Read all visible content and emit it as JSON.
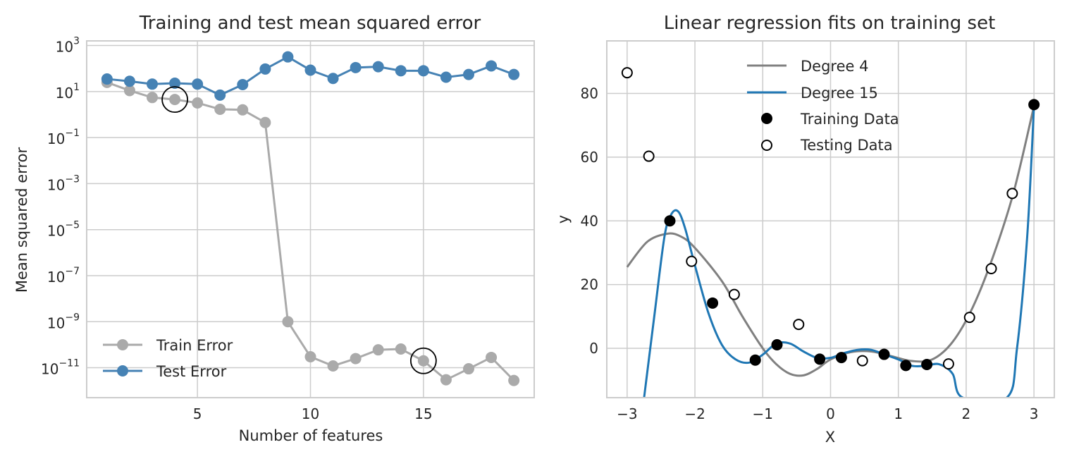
{
  "chart_data": [
    {
      "type": "line",
      "title": "Training and test mean squared error",
      "xlabel": "Number of features",
      "ylabel": "Mean squared error",
      "yscale": "log",
      "xlim": [
        0.1,
        19.9
      ],
      "ylim_log10": [
        -12.3,
        3.2
      ],
      "xticks": [
        "5",
        "10",
        "15"
      ],
      "xtick_values": [
        5,
        10,
        15
      ],
      "yticks": [
        {
          "base": "10",
          "exp": "3",
          "log10": 3
        },
        {
          "base": "10",
          "exp": "1",
          "log10": 1
        },
        {
          "base": "10",
          "exp": "−1",
          "log10": -1
        },
        {
          "base": "10",
          "exp": "−3",
          "log10": -3
        },
        {
          "base": "10",
          "exp": "−5",
          "log10": -5
        },
        {
          "base": "10",
          "exp": "−7",
          "log10": -7
        },
        {
          "base": "10",
          "exp": "−9",
          "log10": -9
        },
        {
          "base": "10",
          "exp": "−11",
          "log10": -11
        }
      ],
      "grid": true,
      "legend_position": "lower-left",
      "x": [
        1,
        2,
        3,
        4,
        5,
        6,
        7,
        8,
        9,
        10,
        11,
        12,
        13,
        14,
        15,
        16,
        17,
        18,
        19
      ],
      "series": [
        {
          "name": "Train Error",
          "color": "#aaaaaa",
          "values": [
            25,
            11,
            5.5,
            4.5,
            3.2,
            1.7,
            1.6,
            0.45,
            1e-09,
            3e-11,
            1.2e-11,
            2.5e-11,
            6e-11,
            6.5e-11,
            2e-11,
            3e-12,
            9e-12,
            2.8e-11,
            2.8e-12
          ]
        },
        {
          "name": "Test Error",
          "color": "#4682b4",
          "values": [
            35,
            28,
            21,
            23,
            21,
            7,
            20,
            95,
            320,
            85,
            37,
            110,
            120,
            80,
            80,
            42,
            55,
            130,
            55
          ]
        }
      ],
      "highlighted_points": [
        {
          "x": 4,
          "y": 4.5
        },
        {
          "x": 15,
          "y": 2e-11
        }
      ]
    },
    {
      "type": "line",
      "title": "Linear regression fits on training set",
      "xlabel": "X",
      "ylabel": "y",
      "xlim": [
        -3.3,
        3.3
      ],
      "ylim": [
        -15.5,
        96.5
      ],
      "xticks": [
        "−3",
        "−2",
        "−1",
        "0",
        "1",
        "2",
        "3"
      ],
      "xtick_values": [
        -3,
        -2,
        -1,
        0,
        1,
        2,
        3
      ],
      "yticks": [
        "0",
        "20",
        "40",
        "60",
        "80"
      ],
      "ytick_values": [
        0,
        20,
        40,
        60,
        80
      ],
      "grid": true,
      "legend_position": "upper-center",
      "series": [
        {
          "name": "Degree 4",
          "color": "#808080",
          "x": [
            -3.0,
            -2.7,
            -2.4,
            -2.2,
            -2.0,
            -1.6,
            -1.3,
            -1.0,
            -0.8,
            -0.6,
            -0.4,
            -0.2,
            0.0,
            0.3,
            0.6,
            0.9,
            1.2,
            1.5,
            1.8,
            2.1,
            2.4,
            2.7,
            3.0
          ],
          "values": [
            25.5,
            33.5,
            36,
            35,
            31.5,
            21,
            10,
            0,
            -5,
            -8,
            -8.5,
            -6.5,
            -3.5,
            -1.2,
            -1,
            -2.5,
            -4,
            -3.5,
            2,
            13,
            29,
            49,
            76
          ]
        },
        {
          "name": "Degree 15",
          "color": "#1f77b4",
          "x": [
            -2.75,
            -2.6,
            -2.45,
            -2.35,
            -2.25,
            -2.15,
            -2.0,
            -1.8,
            -1.6,
            -1.4,
            -1.2,
            -1.0,
            -0.8,
            -0.6,
            -0.4,
            -0.2,
            0.0,
            0.2,
            0.4,
            0.6,
            0.8,
            1.0,
            1.2,
            1.4,
            1.6,
            1.8,
            1.95,
            2.6,
            2.75,
            2.9,
            3.0
          ],
          "values": [
            -15.5,
            10,
            35,
            42,
            43,
            38,
            26,
            11,
            1,
            -3.5,
            -4.5,
            -2,
            1.5,
            1.5,
            -1,
            -3,
            -3,
            -1.5,
            -0.5,
            -0.5,
            -2,
            -3.5,
            -5.5,
            -5.5,
            -5,
            -8,
            -15.5,
            -15.5,
            0,
            35,
            76
          ]
        }
      ],
      "training_data": {
        "name": "Training Data",
        "color": "#000000",
        "x": [
          -2.37,
          -1.74,
          -1.11,
          -0.79,
          -0.16,
          0.16,
          0.79,
          1.11,
          1.42,
          3.0
        ],
        "y": [
          40,
          14.2,
          -3.7,
          1.1,
          -3.4,
          -2.9,
          -1.9,
          -5.4,
          -5.1,
          76.5
        ]
      },
      "testing_data": {
        "name": "Testing Data",
        "color": "#ffffff",
        "x": [
          -3.0,
          -2.68,
          -2.05,
          -1.42,
          -0.47,
          0.47,
          1.74,
          2.05,
          2.37,
          2.68
        ],
        "y": [
          86.5,
          60.3,
          27.3,
          16.9,
          7.5,
          -3.9,
          -4.9,
          9.7,
          25,
          48.6
        ]
      }
    }
  ]
}
